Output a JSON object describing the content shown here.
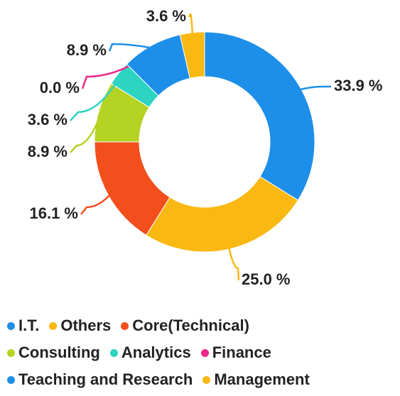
{
  "chart_data": {
    "type": "pie",
    "categories": [
      "I.T.",
      "Others",
      "Core(Technical)",
      "Consulting",
      "Analytics",
      "Finance",
      "Teaching and Research",
      "Management"
    ],
    "values": [
      33.9,
      25.0,
      16.1,
      8.9,
      3.6,
      0.0,
      8.9,
      3.6
    ],
    "value_labels": [
      "33.9 %",
      "25.0 %",
      "16.1 %",
      "8.9 %",
      "3.6 %",
      "0.0 %",
      "8.9 %",
      "3.6 %"
    ],
    "colors": [
      "#1e8fe8",
      "#f9b812",
      "#f24f1d",
      "#b5d323",
      "#2dd4c2",
      "#f0288a",
      "#1e8fe8",
      "#f9b812"
    ],
    "donut": true
  }
}
